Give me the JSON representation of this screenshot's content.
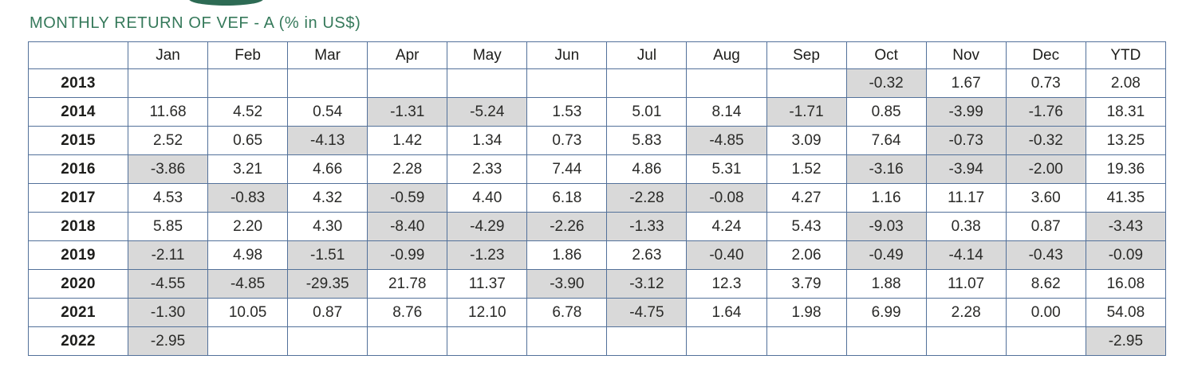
{
  "title": "MONTHLY RETURN OF VEF - A (% in US$)",
  "logo": {
    "name": "partial-green-ellipse-logo",
    "color": "#2d6b54"
  },
  "colors": {
    "title_green": "#35795a",
    "table_border": "#53719a",
    "negative_cell_bg": "#d9d9d9",
    "text": "#1d1d1b"
  },
  "table": {
    "row_header": "",
    "columns": [
      "Jan",
      "Feb",
      "Mar",
      "Apr",
      "May",
      "Jun",
      "Jul",
      "Aug",
      "Sep",
      "Oct",
      "Nov",
      "Dec",
      "YTD"
    ],
    "rows": [
      {
        "year": "2013",
        "values": [
          "",
          "",
          "",
          "",
          "",
          "",
          "",
          "",
          "",
          "-0.32",
          "1.67",
          "0.73",
          "2.08"
        ]
      },
      {
        "year": "2014",
        "values": [
          "11.68",
          "4.52",
          "0.54",
          "-1.31",
          "-5.24",
          "1.53",
          "5.01",
          "8.14",
          "-1.71",
          "0.85",
          "-3.99",
          "-1.76",
          "18.31"
        ]
      },
      {
        "year": "2015",
        "values": [
          "2.52",
          "0.65",
          "-4.13",
          "1.42",
          "1.34",
          "0.73",
          "5.83",
          "-4.85",
          "3.09",
          "7.64",
          "-0.73",
          "-0.32",
          "13.25"
        ]
      },
      {
        "year": "2016",
        "values": [
          "-3.86",
          "3.21",
          "4.66",
          "2.28",
          "2.33",
          "7.44",
          "4.86",
          "5.31",
          "1.52",
          "-3.16",
          "-3.94",
          "-2.00",
          "19.36"
        ]
      },
      {
        "year": "2017",
        "values": [
          "4.53",
          "-0.83",
          "4.32",
          "-0.59",
          "4.40",
          "6.18",
          "-2.28",
          "-0.08",
          "4.27",
          "1.16",
          "11.17",
          "3.60",
          "41.35"
        ]
      },
      {
        "year": "2018",
        "values": [
          "5.85",
          "2.20",
          "4.30",
          "-8.40",
          "-4.29",
          "-2.26",
          "-1.33",
          "4.24",
          "5.43",
          "-9.03",
          "0.38",
          "0.87",
          "-3.43"
        ]
      },
      {
        "year": "2019",
        "values": [
          "-2.11",
          "4.98",
          "-1.51",
          "-0.99",
          "-1.23",
          "1.86",
          "2.63",
          "-0.40",
          "2.06",
          "-0.49",
          "-4.14",
          "-0.43",
          "-0.09"
        ]
      },
      {
        "year": "2020",
        "values": [
          "-4.55",
          "-4.85",
          "-29.35",
          "21.78",
          "11.37",
          "-3.90",
          "-3.12",
          "12.3",
          "3.79",
          "1.88",
          "11.07",
          "8.62",
          "16.08"
        ]
      },
      {
        "year": "2021",
        "values": [
          "-1.30",
          "10.05",
          "0.87",
          "8.76",
          "12.10",
          "6.78",
          "-4.75",
          "1.64",
          "1.98",
          "6.99",
          "2.28",
          "0.00",
          "54.08"
        ]
      },
      {
        "year": "2022",
        "values": [
          "-2.95",
          "",
          "",
          "",
          "",
          "",
          "",
          "",
          "",
          "",
          "",
          "",
          "-2.95"
        ]
      }
    ]
  }
}
